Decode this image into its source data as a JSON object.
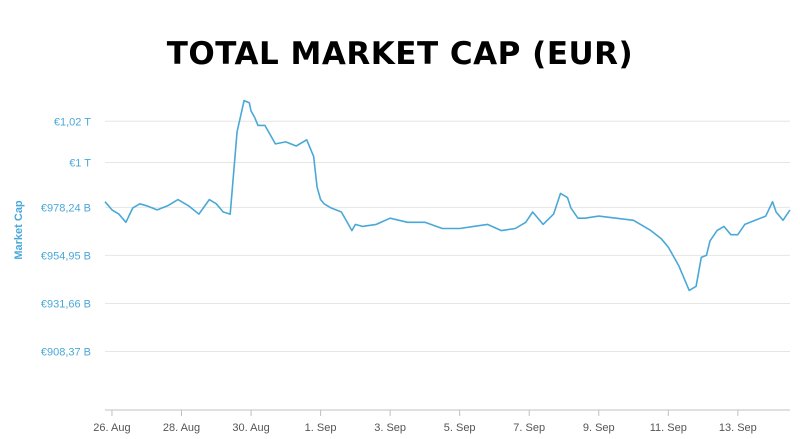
{
  "chart_data": {
    "type": "line",
    "title": "TOTAL MARKET CAP (EUR)",
    "ylabel": "Market Cap",
    "xlabel": "",
    "x_range": [
      25.8,
      45.5
    ],
    "y_range": [
      880,
      1040
    ],
    "grid": true,
    "legend": "none",
    "line_color": "#4aa8d8",
    "y_ticks": [
      {
        "value": 908.37,
        "label": "€908,37 B"
      },
      {
        "value": 931.66,
        "label": "€931,66 B"
      },
      {
        "value": 954.95,
        "label": "€954,95 B"
      },
      {
        "value": 978.24,
        "label": "€978,24 B"
      },
      {
        "value": 1000,
        "label": "€1 T"
      },
      {
        "value": 1020,
        "label": "€1,02 T"
      }
    ],
    "x_ticks": [
      {
        "value": 26,
        "label": "26. Aug"
      },
      {
        "value": 28,
        "label": "28. Aug"
      },
      {
        "value": 30,
        "label": "30. Aug"
      },
      {
        "value": 32,
        "label": "1. Sep"
      },
      {
        "value": 34,
        "label": "3. Sep"
      },
      {
        "value": 36,
        "label": "5. Sep"
      },
      {
        "value": 38,
        "label": "7. Sep"
      },
      {
        "value": 40,
        "label": "9. Sep"
      },
      {
        "value": 42,
        "label": "11. Sep"
      },
      {
        "value": 44,
        "label": "13. Sep"
      }
    ],
    "series": [
      {
        "x": [
          25.8,
          26.0,
          26.2,
          26.4,
          26.6,
          26.8,
          27.0,
          27.3,
          27.6,
          27.9,
          28.2,
          28.5,
          28.8,
          29.0,
          29.2,
          29.4,
          29.6,
          29.8,
          29.95,
          30.0,
          30.1,
          30.2,
          30.4,
          30.7,
          31.0,
          31.3,
          31.6,
          31.8,
          31.9,
          32.0,
          32.1,
          32.3,
          32.6,
          32.8,
          32.9,
          33.0,
          33.2,
          33.6,
          34.0,
          34.5,
          35.0,
          35.5,
          36.0,
          36.4,
          36.8,
          37.2,
          37.6,
          37.9,
          38.1,
          38.4,
          38.7,
          38.9,
          39.1,
          39.2,
          39.4,
          39.6,
          40.0,
          40.5,
          41.0,
          41.5,
          41.8,
          42.0,
          42.3,
          42.6,
          42.8,
          42.95,
          43.1,
          43.2,
          43.4,
          43.6,
          43.8,
          44.0,
          44.2,
          44.5,
          44.8,
          45.0,
          45.1,
          45.3,
          45.5
        ],
        "y": [
          981,
          977,
          975,
          971,
          978,
          980,
          979,
          977,
          979,
          982,
          979,
          975,
          982,
          980,
          976,
          975,
          1015,
          1030,
          1029,
          1025,
          1022,
          1018,
          1018,
          1009,
          1010,
          1008,
          1011,
          1003,
          988,
          982,
          980,
          978,
          976,
          970,
          967,
          970,
          969,
          970,
          973,
          971,
          971,
          968,
          968,
          969,
          970,
          967,
          968,
          971,
          976,
          970,
          975,
          985,
          983,
          978,
          973,
          973,
          974,
          973,
          972,
          967,
          963,
          959,
          950,
          938,
          940,
          954,
          955,
          962,
          967,
          969,
          965,
          965,
          970,
          972,
          974,
          981,
          976,
          972,
          977
        ]
      }
    ]
  }
}
